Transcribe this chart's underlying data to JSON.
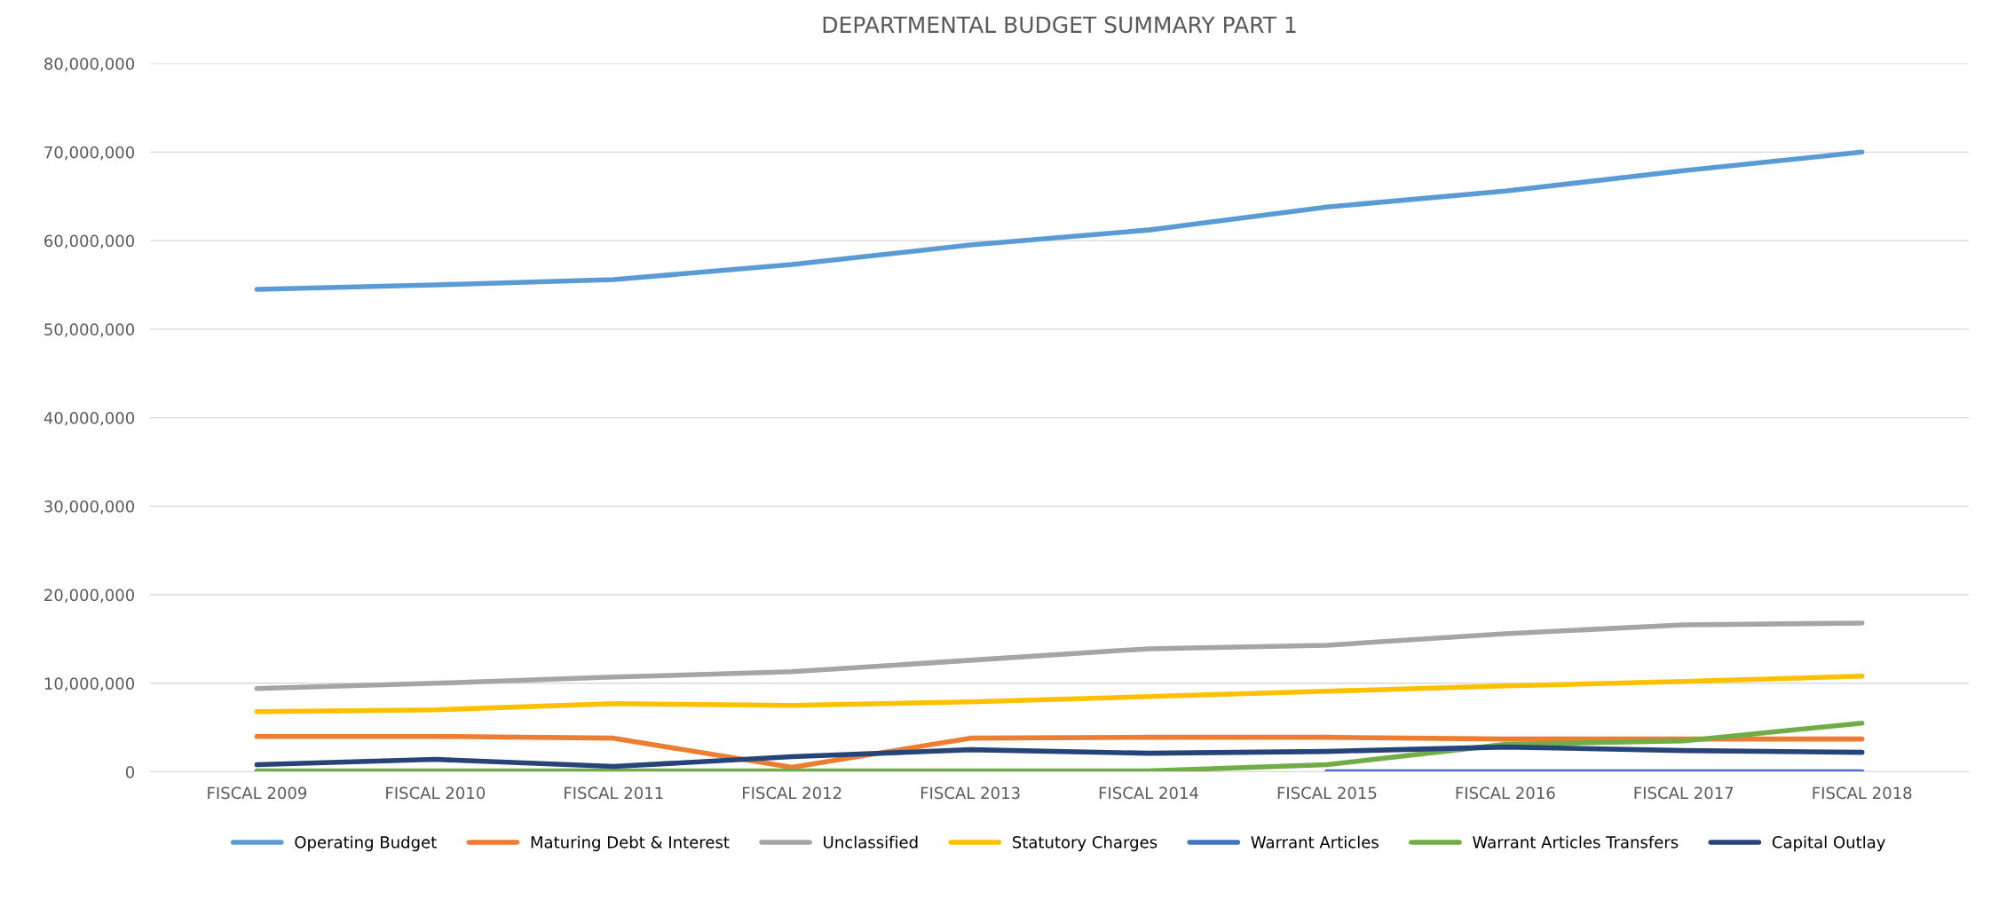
{
  "chart_data": {
    "type": "line",
    "title": "DEPARTMENTAL BUDGET SUMMARY PART 1",
    "categories": [
      "FISCAL 2009",
      "FISCAL 2010",
      "FISCAL 2011",
      "FISCAL 2012",
      "FISCAL 2013",
      "FISCAL 2014",
      "FISCAL 2015",
      "FISCAL 2016",
      "FISCAL 2017",
      "FISCAL 2018"
    ],
    "series": [
      {
        "name": "Operating Budget",
        "color": "#5b9bd5",
        "values": [
          54500000,
          55000000,
          55600000,
          57300000,
          59500000,
          61200000,
          63800000,
          65600000,
          67900000,
          70000000
        ]
      },
      {
        "name": "Maturing Debt & Interest",
        "color": "#ed7d31",
        "values": [
          4000000,
          4000000,
          3800000,
          500000,
          3800000,
          3900000,
          3900000,
          3700000,
          3700000,
          3700000
        ]
      },
      {
        "name": "Unclassified",
        "color": "#a5a5a5",
        "values": [
          9400000,
          10000000,
          10700000,
          11300000,
          12600000,
          13900000,
          14300000,
          15600000,
          16600000,
          16800000
        ]
      },
      {
        "name": "Statutory Charges",
        "color": "#ffc000",
        "values": [
          6800000,
          7000000,
          7700000,
          7500000,
          7900000,
          8500000,
          9100000,
          9700000,
          10200000,
          10800000
        ]
      },
      {
        "name": "Warrant Articles",
        "color": "#4472c4",
        "values": [
          null,
          null,
          null,
          null,
          null,
          null,
          0,
          0,
          0,
          0
        ]
      },
      {
        "name": "Warrant Articles Transfers",
        "color": "#70ad47",
        "values": [
          100000,
          100000,
          100000,
          100000,
          100000,
          100000,
          800000,
          3100000,
          3500000,
          5500000
        ]
      },
      {
        "name": "Capital Outlay",
        "color": "#264478",
        "values": [
          800000,
          1400000,
          600000,
          1700000,
          2500000,
          2100000,
          2300000,
          2800000,
          2400000,
          2200000
        ]
      }
    ],
    "ylim": [
      0,
      80000000
    ],
    "yticks": [
      {
        "value": 0,
        "label": "0"
      },
      {
        "value": 10000000,
        "label": "10,000,000"
      },
      {
        "value": 20000000,
        "label": "20,000,000"
      },
      {
        "value": 30000000,
        "label": "30,000,000"
      },
      {
        "value": 40000000,
        "label": "40,000,000"
      },
      {
        "value": 50000000,
        "label": "50,000,000"
      },
      {
        "value": 60000000,
        "label": "60,000,000"
      },
      {
        "value": 70000000,
        "label": "70,000,000"
      },
      {
        "value": 80000000,
        "label": "80,000,000"
      }
    ],
    "grid": "y",
    "legend": "bottom",
    "marker": "none",
    "line_style": "solid"
  }
}
